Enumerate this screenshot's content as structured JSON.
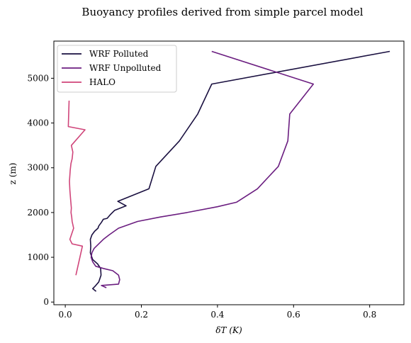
{
  "chart_data": {
    "type": "line",
    "title": "Buoyancy profiles derived from simple parcel model",
    "xlabel": "δT (K)",
    "ylabel": "z (m)",
    "xlim": [
      -0.03,
      0.89
    ],
    "ylim": [
      -60,
      5830
    ],
    "xticks": [
      0.0,
      0.2,
      0.4,
      0.6,
      0.8
    ],
    "xtick_labels": [
      "0.0",
      "0.2",
      "0.4",
      "0.6",
      "0.8"
    ],
    "yticks": [
      0,
      1000,
      2000,
      3000,
      4000,
      5000
    ],
    "ytick_labels": [
      "0",
      "1000",
      "2000",
      "3000",
      "4000",
      "5000"
    ],
    "grid": false,
    "legend_position": "top-left",
    "series": [
      {
        "name": "WRF Polluted",
        "color": "#1a1040",
        "x": [
          0.081,
          0.072,
          0.078,
          0.088,
          0.094,
          0.093,
          0.085,
          0.072,
          0.066,
          0.067,
          0.066,
          0.07,
          0.077,
          0.086,
          0.088,
          0.095,
          0.1,
          0.11,
          0.118,
          0.13,
          0.16,
          0.138,
          0.22,
          0.238,
          0.3,
          0.348,
          0.385,
          0.853
        ],
        "y": [
          240,
          300,
          350,
          450,
          600,
          750,
          850,
          950,
          1100,
          1250,
          1400,
          1500,
          1580,
          1650,
          1700,
          1780,
          1850,
          1870,
          1950,
          2050,
          2150,
          2250,
          2530,
          3030,
          3600,
          4200,
          4870,
          5600
        ]
      },
      {
        "name": "WRF Unpolluted",
        "color": "#6b1e80",
        "x": [
          0.108,
          0.095,
          0.14,
          0.143,
          0.14,
          0.125,
          0.1,
          0.08,
          0.072,
          0.068,
          0.07,
          0.076,
          0.088,
          0.1,
          0.115,
          0.14,
          0.19,
          0.25,
          0.32,
          0.4,
          0.45,
          0.505,
          0.56,
          0.585,
          0.59,
          0.652,
          0.385
        ],
        "y": [
          320,
          370,
          400,
          500,
          600,
          700,
          750,
          800,
          900,
          1000,
          1100,
          1200,
          1300,
          1400,
          1500,
          1650,
          1800,
          1900,
          2000,
          2130,
          2230,
          2530,
          3030,
          3600,
          4200,
          4870,
          5600
        ]
      },
      {
        "name": "HALO",
        "color": "#d0457a",
        "x": [
          0.028,
          0.045,
          0.018,
          0.012,
          0.022,
          0.018,
          0.017,
          0.015,
          0.016,
          0.014,
          0.012,
          0.011,
          0.013,
          0.015,
          0.018,
          0.02,
          0.016,
          0.052,
          0.008,
          0.01
        ],
        "y": [
          600,
          1250,
          1300,
          1400,
          1650,
          1800,
          1900,
          2000,
          2100,
          2300,
          2500,
          2700,
          2950,
          3100,
          3200,
          3350,
          3500,
          3850,
          3920,
          4500
        ]
      }
    ]
  }
}
